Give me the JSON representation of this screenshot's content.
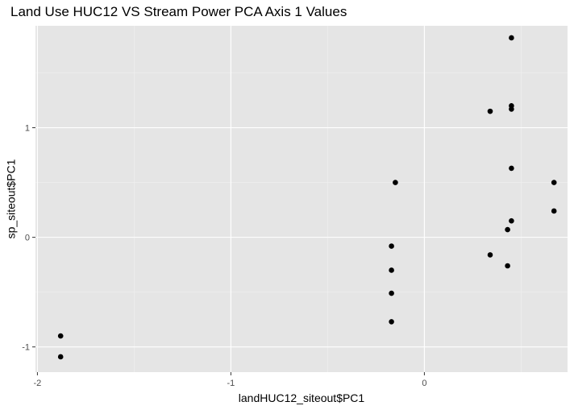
{
  "chart_data": {
    "type": "scatter",
    "title": "Land Use HUC12 VS Stream Power PCA Axis 1 Values",
    "xlabel": "landHUC12_siteout$PC1",
    "ylabel": "sp_siteout$PC1",
    "xlim": [
      -2.01,
      0.74
    ],
    "ylim": [
      -1.23,
      1.93
    ],
    "x_ticks": [
      -2,
      -1,
      0
    ],
    "x_tick_labels": [
      "-2",
      "-1",
      "0"
    ],
    "y_ticks": [
      -1,
      0,
      1
    ],
    "y_tick_labels": [
      "-1",
      "0",
      "1"
    ],
    "grid": true,
    "legend": "none",
    "colors": {
      "panel_background": "#e5e5e5",
      "major_grid": "#ffffff",
      "minor_grid": "#f1f1f1",
      "point": "#000000"
    },
    "points": [
      {
        "x": -1.88,
        "y": -0.9
      },
      {
        "x": -1.88,
        "y": -1.09
      },
      {
        "x": -0.17,
        "y": -0.08
      },
      {
        "x": -0.17,
        "y": -0.3
      },
      {
        "x": -0.17,
        "y": -0.51
      },
      {
        "x": -0.17,
        "y": -0.77
      },
      {
        "x": -0.15,
        "y": 0.5
      },
      {
        "x": 0.34,
        "y": 1.15
      },
      {
        "x": 0.34,
        "y": -0.16
      },
      {
        "x": 0.43,
        "y": 0.07
      },
      {
        "x": 0.43,
        "y": -0.26
      },
      {
        "x": 0.45,
        "y": 1.82
      },
      {
        "x": 0.45,
        "y": 1.2
      },
      {
        "x": 0.45,
        "y": 1.17
      },
      {
        "x": 0.45,
        "y": 0.63
      },
      {
        "x": 0.45,
        "y": 0.15
      },
      {
        "x": 0.67,
        "y": 0.5
      },
      {
        "x": 0.67,
        "y": 0.24
      }
    ]
  }
}
